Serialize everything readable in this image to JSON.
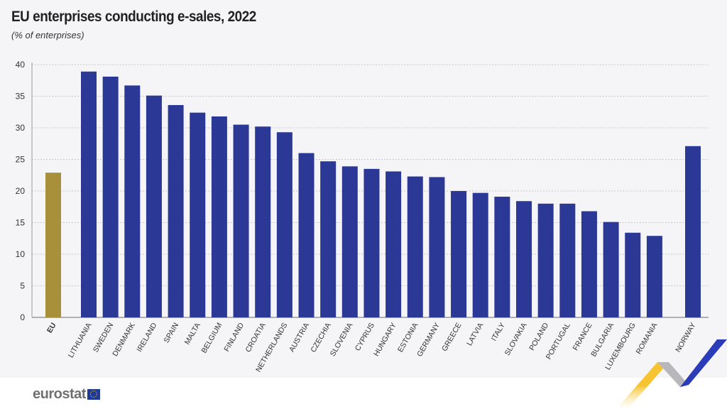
{
  "chart_data": {
    "type": "bar",
    "title": "EU enterprises conducting e-sales, 2022",
    "subtitle": "(% of enterprises)",
    "categories": [
      "EU",
      "LITHUANIA",
      "SWEDEN",
      "DENMARK",
      "IRELAND",
      "SPAIN",
      "MALTA",
      "BELGIUM",
      "FINLAND",
      "CROATIA",
      "NETHERLANDS",
      "AUSTRIA",
      "CZECHIA",
      "SLOVENIA",
      "CYPRUS",
      "HUNGARY",
      "ESTONIA",
      "GERMANY",
      "GREECE",
      "LATVIA",
      "ITALY",
      "SLOVAKIA",
      "POLAND",
      "PORTUGAL",
      "FRANCE",
      "BULGARIA",
      "LUXEMBOURG",
      "ROMANIA",
      "NORWAY"
    ],
    "values": [
      22.9,
      38.9,
      38.1,
      36.7,
      35.1,
      33.6,
      32.4,
      31.8,
      30.5,
      30.2,
      29.3,
      26.0,
      24.7,
      23.9,
      23.5,
      23.1,
      22.3,
      22.2,
      20.0,
      19.7,
      19.1,
      18.4,
      18.0,
      18.0,
      16.8,
      15.1,
      13.4,
      12.9,
      27.1
    ],
    "ylim": [
      0,
      40
    ],
    "yticks": [
      0,
      5,
      10,
      15,
      20,
      25,
      30,
      35,
      40
    ],
    "grid": true,
    "colors": {
      "eu": "#a88f3a",
      "country": "#2c3895"
    }
  },
  "footer": {
    "logo": "eurostat"
  }
}
